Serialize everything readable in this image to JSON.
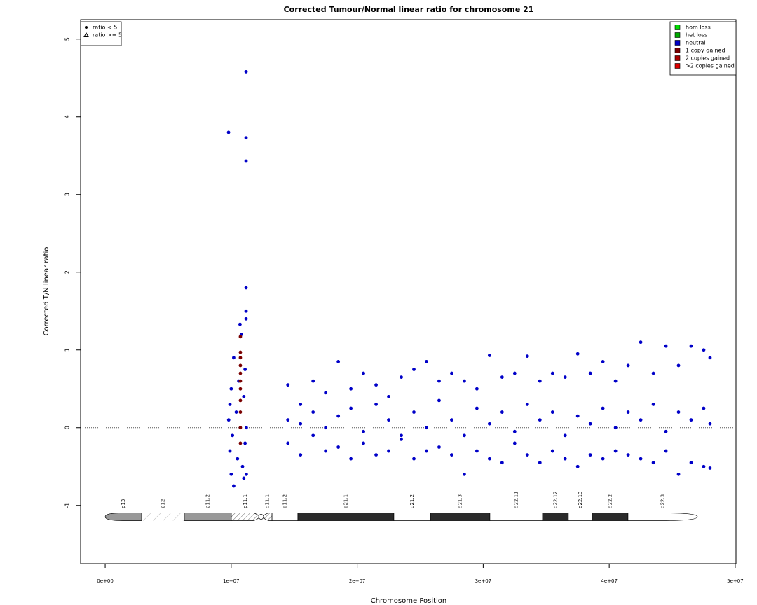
{
  "chart_data": {
    "type": "scatter",
    "title": "Corrected Tumour/Normal linear ratio for chromosome  21",
    "xlabel": "Chromosome Position",
    "ylabel": "Corrected T/N linear ratio",
    "xlim": [
      -1950000,
      50060000
    ],
    "ylim": [
      -1.75,
      5.25
    ],
    "xticks": [
      {
        "value": 0,
        "label": "0e+00"
      },
      {
        "value": 10000000,
        "label": "1e+07"
      },
      {
        "value": 20000000,
        "label": "2e+07"
      },
      {
        "value": 30000000,
        "label": "3e+07"
      },
      {
        "value": 40000000,
        "label": "4e+07"
      },
      {
        "value": 50000000,
        "label": "5e+07"
      }
    ],
    "yticks": [
      -1,
      0,
      1,
      2,
      3,
      4,
      5
    ],
    "hline": 0,
    "legend": "topright",
    "shape_legend": [
      {
        "label": "ratio < 5",
        "shape": "circle"
      },
      {
        "label": "ratio >= 5",
        "shape": "triangle"
      }
    ],
    "series": [
      {
        "name": "hom loss",
        "color": "#00dd00",
        "x": [],
        "values": []
      },
      {
        "name": "het loss",
        "color": "#00aa00",
        "x": [],
        "values": []
      },
      {
        "name": "neutral",
        "color": "#0000c8",
        "x": [
          9800000.0,
          9900000.0,
          10000000.0,
          10000000.0,
          9900000.0,
          10100000.0,
          10200000.0,
          10200000.0,
          9790000.0,
          10400000.0,
          10500000.0,
          10600000.0,
          10700000.0,
          10800000.0,
          10900000.0,
          11000000.0,
          11000000.0,
          11100000.0,
          11100000.0,
          11180000.0,
          11180000.0,
          11180000.0,
          11180000.0,
          11180000.0,
          11180000.0,
          11200000.0,
          11200000.0,
          14500000.0,
          14500000.0,
          14500000.0,
          15500000.0,
          15500000.0,
          15500000.0,
          16500000.0,
          16500000.0,
          16500000.0,
          17500000.0,
          17500000.0,
          17500000.0,
          18500000.0,
          18500000.0,
          18500000.0,
          19500000.0,
          19500000.0,
          19500000.0,
          20500000.0,
          20500000.0,
          20500000.0,
          21500000.0,
          21500000.0,
          21500000.0,
          22500000.0,
          22500000.0,
          22500000.0,
          23500000.0,
          23500000.0,
          23500000.0,
          24500000.0,
          24500000.0,
          24500000.0,
          25500000.0,
          25500000.0,
          25500000.0,
          26500000.0,
          26500000.0,
          26500000.0,
          27500000.0,
          27500000.0,
          27500000.0,
          28500000.0,
          28500000.0,
          28500000.0,
          29500000.0,
          29500000.0,
          29500000.0,
          30500000.0,
          30500000.0,
          30500000.0,
          31500000.0,
          31500000.0,
          31500000.0,
          32500000.0,
          32500000.0,
          32500000.0,
          33500000.0,
          33500000.0,
          33500000.0,
          34500000.0,
          34500000.0,
          34500000.0,
          35500000.0,
          35500000.0,
          35500000.0,
          36500000.0,
          36500000.0,
          36500000.0,
          37500000.0,
          37500000.0,
          37500000.0,
          38500000.0,
          38500000.0,
          38500000.0,
          39500000.0,
          39500000.0,
          39500000.0,
          40500000.0,
          40500000.0,
          40500000.0,
          41500000.0,
          41500000.0,
          41500000.0,
          42500000.0,
          42500000.0,
          42500000.0,
          43500000.0,
          43500000.0,
          43500000.0,
          44500000.0,
          44500000.0,
          44500000.0,
          45500000.0,
          45500000.0,
          45500000.0,
          46500000.0,
          46500000.0,
          46500000.0,
          47500000.0,
          47500000.0,
          47500000.0,
          48000000.0,
          48000000.0,
          48000000.0
        ],
        "values": [
          0.1,
          -0.3,
          0.5,
          -0.6,
          0.3,
          -0.1,
          0.9,
          -0.75,
          3.8,
          0.2,
          -0.4,
          0.6,
          1.33,
          1.2,
          -0.5,
          0.4,
          -0.65,
          0.75,
          -0.2,
          4.58,
          3.73,
          3.43,
          1.8,
          1.5,
          1.4,
          0.0,
          -0.6,
          0.55,
          -0.2,
          0.1,
          0.3,
          -0.35,
          0.05,
          0.6,
          -0.1,
          0.2,
          0.45,
          -0.3,
          0.0,
          0.85,
          -0.25,
          0.15,
          0.5,
          -0.4,
          0.25,
          0.7,
          -0.2,
          -0.05,
          0.55,
          -0.35,
          0.3,
          0.4,
          -0.3,
          0.1,
          0.65,
          -0.15,
          -0.1,
          0.75,
          -0.4,
          0.2,
          0.85,
          -0.3,
          0.0,
          0.6,
          -0.25,
          0.35,
          0.7,
          -0.35,
          0.1,
          0.6,
          -0.6,
          -0.1,
          0.5,
          -0.3,
          0.25,
          0.93,
          -0.4,
          0.05,
          0.65,
          -0.45,
          0.2,
          0.7,
          -0.2,
          -0.05,
          0.92,
          -0.35,
          0.3,
          0.6,
          -0.45,
          0.1,
          0.7,
          -0.3,
          0.2,
          0.65,
          -0.4,
          -0.1,
          0.95,
          -0.5,
          0.15,
          0.7,
          -0.35,
          0.05,
          0.85,
          -0.4,
          0.25,
          0.6,
          -0.3,
          0.0,
          0.8,
          -0.35,
          0.2,
          1.1,
          -0.4,
          0.1,
          0.7,
          -0.45,
          0.3,
          1.05,
          -0.3,
          -0.05,
          0.8,
          -0.6,
          0.2,
          1.05,
          -0.45,
          0.1,
          1.0,
          -0.5,
          0.25,
          0.9,
          -0.52,
          0.05
        ]
      },
      {
        "name": "1 copy gained",
        "color": "#7a0000",
        "x": [
          10730000.0,
          10730000.0,
          10730000.0,
          10730000.0,
          10730000.0,
          10730000.0,
          10730000.0,
          10730000.0,
          10730000.0,
          10730000.0,
          10730000.0
        ],
        "values": [
          -0.2,
          0.0,
          0.2,
          0.35,
          0.5,
          0.6,
          0.7,
          0.8,
          0.9,
          0.97,
          1.17
        ]
      },
      {
        "name": "2 copies gained",
        "color": "#aa0000",
        "x": [],
        "values": []
      },
      {
        "name": ">2 copies gained",
        "color": "#dd0000",
        "x": [],
        "values": []
      }
    ],
    "ideogram": [
      {
        "label": "p13",
        "start": 0,
        "end": 2890000,
        "style": "gpos50"
      },
      {
        "label": "p12",
        "start": 2890000,
        "end": 6280000,
        "style": "stalk"
      },
      {
        "label": "p11.2",
        "start": 6280000,
        "end": 10010000,
        "style": "gpos50"
      },
      {
        "label": "p11.1",
        "start": 10010000,
        "end": 12240000,
        "style": "acen"
      },
      {
        "label": "q11.1",
        "start": 12510000,
        "end": 13240000,
        "style": "acen"
      },
      {
        "label": "q11.2",
        "start": 13240000,
        "end": 15290000,
        "style": "gneg"
      },
      {
        "label": "q21.1",
        "start": 15290000,
        "end": 22910000,
        "style": "gpos100"
      },
      {
        "label": "q21.2",
        "start": 22910000,
        "end": 25810000,
        "style": "gneg"
      },
      {
        "label": "q21.3",
        "start": 25810000,
        "end": 30530000,
        "style": "gpos100"
      },
      {
        "label": "q22.11",
        "start": 30530000,
        "end": 34710000,
        "style": "gneg"
      },
      {
        "label": "q22.12",
        "start": 34710000,
        "end": 36760000,
        "style": "gpos100"
      },
      {
        "label": "q22.13",
        "start": 36760000,
        "end": 38650000,
        "style": "gneg"
      },
      {
        "label": "q22.2",
        "start": 38650000,
        "end": 41490000,
        "style": "gpos100"
      },
      {
        "label": "q22.3",
        "start": 41490000,
        "end": 47000000,
        "style": "gneg"
      }
    ]
  }
}
